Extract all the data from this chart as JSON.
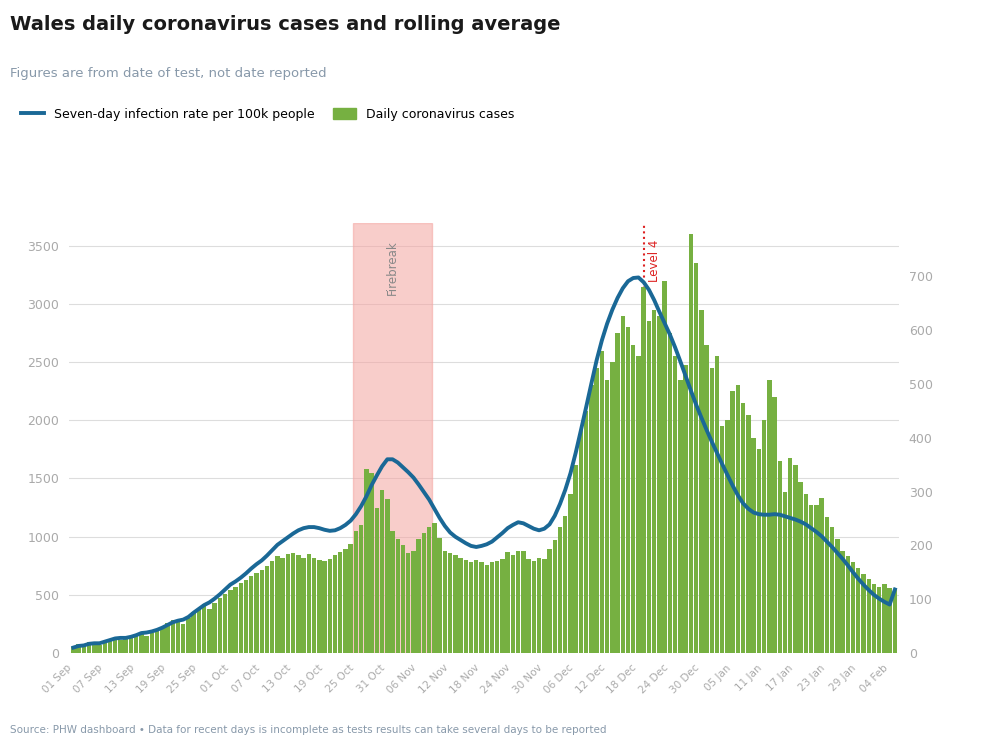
{
  "title": "Wales daily coronavirus cases and rolling average",
  "subtitle": "Figures are from date of test, not date reported",
  "source": "Source: PHW dashboard • Data for recent days is incomplete as tests results can take several days to be reported",
  "legend_line": "Seven-day infection rate per 100k people",
  "legend_bar": "Daily coronavirus cases",
  "bar_color": "#76b041",
  "line_color": "#1a6896",
  "firebreak_color": "#f4a4a0",
  "firebreak_label": "Firebreak",
  "level4_label": "Level 4",
  "title_color": "#1a1a1a",
  "subtitle_color": "#8899aa",
  "source_color": "#8899aa",
  "ylim_left": [
    0,
    3700
  ],
  "ylim_right": [
    0,
    800
  ],
  "tick_color": "#aaaaaa",
  "grid_color": "#dddddd",
  "firebreak_start_idx": 54,
  "firebreak_end_idx": 68,
  "level4_idx": 109,
  "daily_cases": [
    55,
    75,
    60,
    90,
    80,
    70,
    100,
    120,
    130,
    110,
    120,
    140,
    160,
    180,
    150,
    170,
    200,
    220,
    260,
    280,
    270,
    250,
    300,
    350,
    390,
    420,
    380,
    430,
    470,
    510,
    540,
    570,
    600,
    630,
    660,
    690,
    710,
    750,
    790,
    830,
    820,
    850,
    860,
    840,
    820,
    850,
    820,
    800,
    790,
    810,
    840,
    870,
    890,
    940,
    1050,
    1100,
    1580,
    1550,
    1250,
    1400,
    1320,
    1050,
    980,
    930,
    860,
    880,
    980,
    1030,
    1080,
    1120,
    990,
    880,
    860,
    840,
    820,
    800,
    780,
    800,
    780,
    760,
    780,
    790,
    810,
    870,
    840,
    875,
    880,
    810,
    790,
    820,
    810,
    890,
    970,
    1080,
    1180,
    1370,
    1620,
    1920,
    2080,
    2300,
    2450,
    2600,
    2350,
    2500,
    2750,
    2900,
    2800,
    2650,
    2550,
    3150,
    2850,
    2950,
    2900,
    3200,
    2750,
    2550,
    2350,
    2480,
    3600,
    3350,
    2950,
    2650,
    2450,
    2550,
    1950,
    2000,
    2250,
    2300,
    2150,
    2050,
    1850,
    1750,
    2000,
    2350,
    2200,
    1650,
    1380,
    1680,
    1620,
    1470,
    1370,
    1270,
    1270,
    1330,
    1170,
    1080,
    980,
    880,
    830,
    780,
    730,
    680,
    640,
    590,
    570,
    590,
    560,
    550
  ],
  "rolling_avg_right": [
    10,
    13,
    14,
    17,
    18,
    18,
    21,
    24,
    27,
    28,
    28,
    30,
    33,
    37,
    38,
    40,
    43,
    47,
    52,
    57,
    60,
    62,
    67,
    75,
    82,
    89,
    94,
    101,
    109,
    118,
    127,
    133,
    140,
    148,
    157,
    165,
    172,
    181,
    191,
    201,
    208,
    215,
    222,
    228,
    232,
    234,
    234,
    232,
    229,
    227,
    228,
    232,
    238,
    246,
    258,
    273,
    291,
    312,
    330,
    347,
    360,
    360,
    354,
    345,
    336,
    326,
    313,
    299,
    285,
    268,
    251,
    236,
    224,
    216,
    210,
    204,
    199,
    197,
    199,
    202,
    207,
    215,
    223,
    232,
    238,
    243,
    241,
    236,
    231,
    228,
    231,
    239,
    255,
    277,
    303,
    334,
    372,
    414,
    457,
    501,
    544,
    581,
    612,
    638,
    660,
    678,
    691,
    697,
    698,
    689,
    675,
    656,
    634,
    613,
    592,
    568,
    542,
    515,
    488,
    462,
    438,
    415,
    393,
    372,
    351,
    331,
    311,
    293,
    278,
    268,
    261,
    258,
    257,
    257,
    258,
    257,
    254,
    251,
    248,
    244,
    239,
    232,
    225,
    217,
    207,
    197,
    186,
    175,
    163,
    150,
    138,
    127,
    117,
    108,
    101,
    95,
    90,
    118
  ],
  "x_tick_labels": [
    "01 Sep",
    "07 Sep",
    "13 Sep",
    "19 Sep",
    "25 Sep",
    "01 Oct",
    "07 Oct",
    "13 Oct",
    "19 Oct",
    "25 Oct",
    "31 Oct",
    "06 Nov",
    "12 Nov",
    "18 Nov",
    "24 Nov",
    "30 Nov",
    "06 Dec",
    "12 Dec",
    "18 Dec",
    "24 Dec",
    "30 Dec",
    "05 Jan",
    "11 Jan",
    "17 Jan",
    "23 Jan",
    "29 Jan",
    "04 Feb"
  ],
  "x_tick_indices": [
    0,
    6,
    12,
    18,
    24,
    30,
    36,
    42,
    48,
    54,
    60,
    66,
    72,
    78,
    84,
    90,
    96,
    102,
    108,
    114,
    120,
    126,
    132,
    138,
    144,
    150,
    156
  ]
}
